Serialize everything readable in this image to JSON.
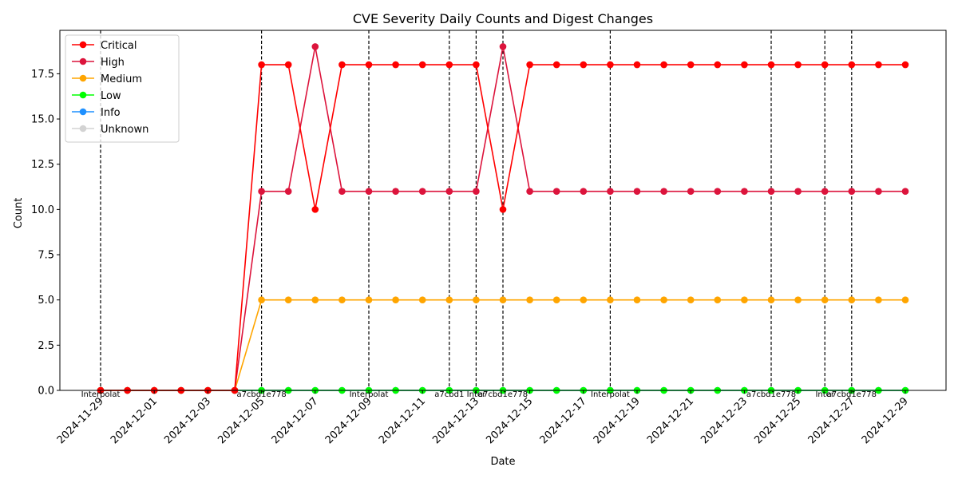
{
  "chart_data": {
    "type": "line",
    "title": "CVE Severity Daily Counts and Digest Changes",
    "xlabel": "Date",
    "ylabel": "Count",
    "x": [
      "2024-11-29",
      "2024-11-30",
      "2024-12-01",
      "2024-12-02",
      "2024-12-03",
      "2024-12-04",
      "2024-12-05",
      "2024-12-06",
      "2024-12-07",
      "2024-12-08",
      "2024-12-09",
      "2024-12-10",
      "2024-12-11",
      "2024-12-12",
      "2024-12-13",
      "2024-12-14",
      "2024-12-15",
      "2024-12-16",
      "2024-12-17",
      "2024-12-18",
      "2024-12-19",
      "2024-12-20",
      "2024-12-21",
      "2024-12-22",
      "2024-12-23",
      "2024-12-24",
      "2024-12-25",
      "2024-12-26",
      "2024-12-27",
      "2024-12-28",
      "2024-12-29"
    ],
    "xticks": [
      "2024-11-29",
      "2024-12-01",
      "2024-12-03",
      "2024-12-05",
      "2024-12-07",
      "2024-12-09",
      "2024-12-11",
      "2024-12-13",
      "2024-12-15",
      "2024-12-17",
      "2024-12-19",
      "2024-12-21",
      "2024-12-23",
      "2024-12-25",
      "2024-12-27",
      "2024-12-29"
    ],
    "ylim": [
      0,
      19.9
    ],
    "yticks": [
      "0.0",
      "2.5",
      "5.0",
      "7.5",
      "10.0",
      "12.5",
      "15.0",
      "17.5"
    ],
    "legend_position": "upper-left",
    "grid": false,
    "series": [
      {
        "name": "Critical",
        "color": "#ff0000",
        "values": [
          0,
          0,
          0,
          0,
          0,
          0,
          18,
          18,
          10,
          18,
          18,
          18,
          18,
          18,
          18,
          10,
          18,
          18,
          18,
          18,
          18,
          18,
          18,
          18,
          18,
          18,
          18,
          18,
          18,
          18,
          18
        ]
      },
      {
        "name": "High",
        "color": "#dc143c",
        "values": [
          0,
          0,
          0,
          0,
          0,
          0,
          11,
          11,
          19,
          11,
          11,
          11,
          11,
          11,
          11,
          19,
          11,
          11,
          11,
          11,
          11,
          11,
          11,
          11,
          11,
          11,
          11,
          11,
          11,
          11,
          11
        ]
      },
      {
        "name": "Medium",
        "color": "#ffa500",
        "values": [
          0,
          0,
          0,
          0,
          0,
          0,
          5,
          5,
          5,
          5,
          5,
          5,
          5,
          5,
          5,
          5,
          5,
          5,
          5,
          5,
          5,
          5,
          5,
          5,
          5,
          5,
          5,
          5,
          5,
          5,
          5
        ]
      },
      {
        "name": "Low",
        "color": "#00ff00",
        "values": [
          0,
          0,
          0,
          0,
          0,
          0,
          0,
          0,
          0,
          0,
          0,
          0,
          0,
          0,
          0,
          0,
          0,
          0,
          0,
          0,
          0,
          0,
          0,
          0,
          0,
          0,
          0,
          0,
          0,
          0,
          0
        ]
      },
      {
        "name": "Info",
        "color": "#1e90ff",
        "values": [
          0,
          0,
          0,
          0,
          0,
          0,
          0,
          0,
          0,
          0,
          0,
          0,
          0,
          0,
          0,
          0,
          0,
          0,
          0,
          0,
          0,
          0,
          0,
          0,
          0,
          0,
          0,
          0,
          0,
          0,
          0
        ]
      },
      {
        "name": "Unknown",
        "color": "#d3d3d3",
        "values": [
          0,
          0,
          0,
          0,
          0,
          0,
          0,
          0,
          0,
          0,
          0,
          0,
          0,
          0,
          0,
          0,
          0,
          0,
          0,
          0,
          0,
          0,
          0,
          0,
          0,
          0,
          0,
          0,
          0,
          0,
          0
        ]
      }
    ],
    "digest_changes": [
      {
        "date": "2024-11-29",
        "label": "Interpolat"
      },
      {
        "date": "2024-12-05",
        "label": "a7cbd1e778"
      },
      {
        "date": "2024-12-09",
        "label": "Interpolat"
      },
      {
        "date": "2024-12-12",
        "label": "a7cbd1"
      },
      {
        "date": "2024-12-13",
        "label": "Inter"
      },
      {
        "date": "2024-12-14",
        "label": "a7cbd1e778"
      },
      {
        "date": "2024-12-18",
        "label": "Interpolat"
      },
      {
        "date": "2024-12-24",
        "label": "a7cbd1e778"
      },
      {
        "date": "2024-12-26",
        "label": "Inter"
      },
      {
        "date": "2024-12-27",
        "label": "a7cbd1e778"
      }
    ]
  }
}
